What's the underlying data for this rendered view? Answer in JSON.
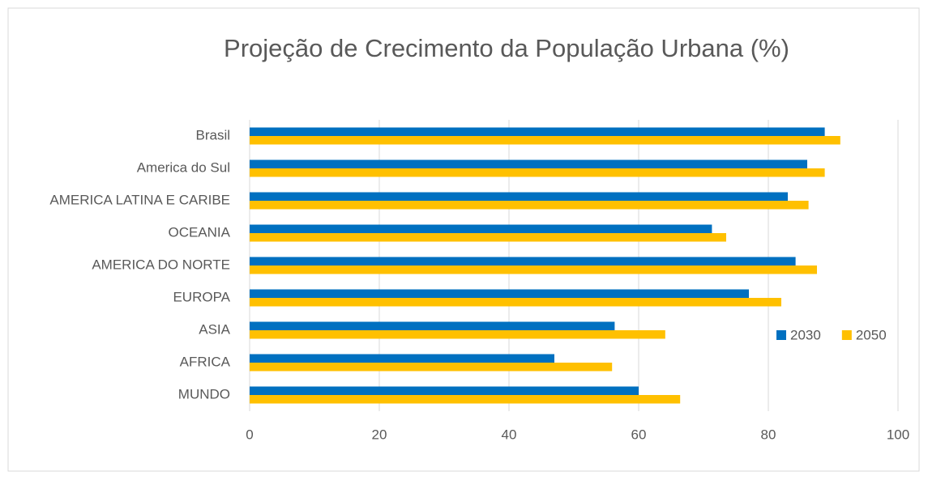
{
  "chart_data": {
    "type": "hbar",
    "title": "Projeção de Crecimento da População Urbana (%)",
    "categories": [
      "Brasil",
      "America do Sul",
      "AMERICA LATINA E CARIBE",
      "OCEANIA",
      "AMERICA DO NORTE",
      "EUROPA",
      "ASIA",
      "AFRICA",
      "MUNDO"
    ],
    "series": [
      {
        "name": "2030",
        "color": "#0070c0",
        "values": [
          88.7,
          86,
          83,
          71.3,
          84.2,
          77,
          56.3,
          47,
          60
        ]
      },
      {
        "name": "2050",
        "color": "#ffc000",
        "values": [
          91.1,
          88.7,
          86.2,
          73.5,
          87.5,
          82,
          64.1,
          55.9,
          66.4
        ]
      }
    ],
    "xlim": [
      0,
      100
    ],
    "xticks": [
      0,
      20,
      40,
      60,
      80,
      100
    ],
    "grid": true,
    "legend": "right"
  }
}
